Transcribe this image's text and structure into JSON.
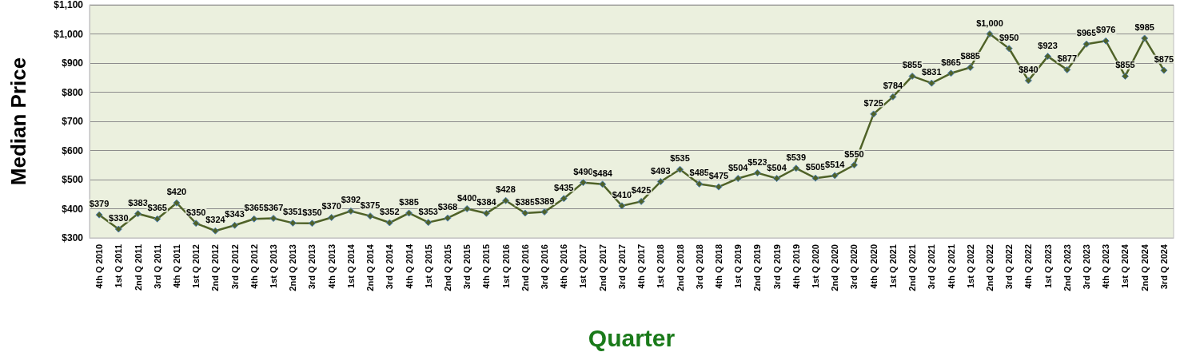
{
  "chart_data": {
    "type": "line",
    "xlabel": "Quarter",
    "ylabel": "Median Price",
    "categories": [
      "4th Q 2010",
      "1st Q 2011",
      "2nd Q 2011",
      "3rd Q 2011",
      "4th Q 2011",
      "1st Q 2012",
      "2nd Q 2012",
      "3rd Q 2012",
      "4th Q 2012",
      "1st Q 2013",
      "2nd Q 2013",
      "3rd Q 2013",
      "4th Q 2013",
      "1st Q 2014",
      "2nd Q 2014",
      "3rd Q 2014",
      "4th Q 2014",
      "1st Q 2015",
      "2nd Q 2015",
      "3rd Q 2015",
      "4th Q 2015",
      "1st Q 2016",
      "2nd Q 2016",
      "3rd Q 2016",
      "4th Q 2016",
      "1st Q 2017",
      "2nd Q 2017",
      "3rd Q 2017",
      "4th Q 2017",
      "1st Q 2018",
      "2nd Q 2018",
      "3rd Q 2018",
      "4th Q 2018",
      "1st Q 2019",
      "2nd Q 2019",
      "3rd Q 2019",
      "4th Q 2019",
      "1st Q 2020",
      "2nd Q 2020",
      "3rd Q 2020",
      "4th Q 2020",
      "1st Q 2021",
      "2nd Q 2021",
      "3rd Q 2021",
      "4th Q 2021",
      "1st Q 2022",
      "2nd Q 2022",
      "3rd Q 2022",
      "4th Q 2022",
      "1st Q 2023",
      "2nd Q 2023",
      "3rd Q 2023",
      "4th Q 2023",
      "1st Q 2024",
      "2nd Q 2024",
      "3rd Q 2024"
    ],
    "values": [
      379,
      330,
      383,
      365,
      420,
      350,
      324,
      343,
      365,
      367,
      351,
      350,
      370,
      392,
      375,
      352,
      385,
      353,
      368,
      400,
      384,
      428,
      385,
      389,
      435,
      490,
      484,
      410,
      425,
      493,
      535,
      485,
      475,
      504,
      523,
      504,
      539,
      505,
      514,
      550,
      725,
      784,
      855,
      831,
      865,
      885,
      1000,
      950,
      840,
      923,
      877,
      965,
      976,
      855,
      985,
      875
    ],
    "value_labels": [
      "$379",
      "$330",
      "$383",
      "$365",
      "$420",
      "$350",
      "$324",
      "$343",
      "$365",
      "$367",
      "$351",
      "$350",
      "$370",
      "$392",
      "$375",
      "$352",
      "$385",
      "$353",
      "$368",
      "$400",
      "$384",
      "$428",
      "$385",
      "$389",
      "$435",
      "$490",
      "$484",
      "$410",
      "$425",
      "$493",
      "$535",
      "$485",
      "$475",
      "$504",
      "$523",
      "$504",
      "$539",
      "$505",
      "$514",
      "$550",
      "$725",
      "$784",
      "$855",
      "$831",
      "$865",
      "$885",
      "$1,000",
      "$950",
      "$840",
      "$923",
      "$877",
      "$965",
      "$976",
      "$855",
      "$985",
      "$875"
    ],
    "color": "#4f6228",
    "ylim": [
      300,
      1100
    ],
    "yticks": [
      {
        "value": 300,
        "label": "$300"
      },
      {
        "value": 400,
        "label": "$400"
      },
      {
        "value": 500,
        "label": "$500"
      },
      {
        "value": 600,
        "label": "$600"
      },
      {
        "value": 700,
        "label": "$700"
      },
      {
        "value": 800,
        "label": "$800"
      },
      {
        "value": 900,
        "label": "$900"
      },
      {
        "value": 1000,
        "label": "$1,000"
      },
      {
        "value": 1100,
        "label": "$1,100"
      }
    ],
    "grid": "y",
    "marker": "diamond",
    "line_style": "solid"
  }
}
